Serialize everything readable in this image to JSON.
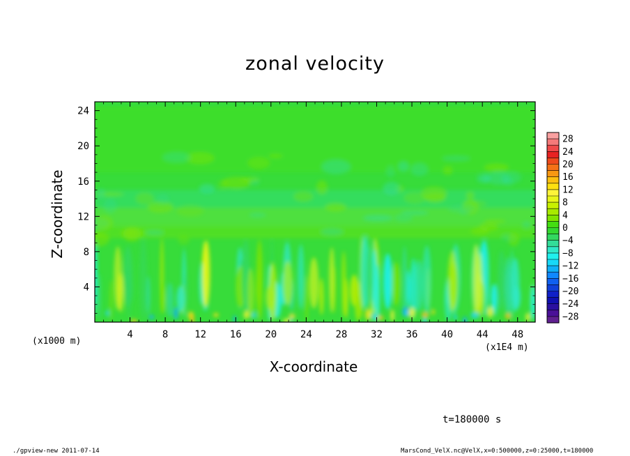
{
  "chart_data": {
    "type": "heatmap",
    "title": "zonal velocity",
    "xlabel": "X-coordinate",
    "ylabel": "Z-coordinate",
    "x_units_left": "(x1000 m)",
    "x_units_right": "(x1E4 m)",
    "xlim": [
      0,
      50
    ],
    "ylim": [
      0,
      25
    ],
    "xticks": [
      "4",
      "8",
      "12",
      "16",
      "20",
      "24",
      "28",
      "32",
      "36",
      "40",
      "44",
      "48"
    ],
    "yticks": [
      "4",
      "8",
      "12",
      "16",
      "20",
      "24"
    ],
    "colorbar": {
      "labels": [
        "28",
        "24",
        "20",
        "16",
        "12",
        "8",
        "4",
        "0",
        "−4",
        "−8",
        "−12",
        "−16",
        "−20",
        "−24",
        "−28"
      ],
      "levels": [
        30,
        28,
        26,
        24,
        22,
        20,
        18,
        16,
        14,
        12,
        10,
        8,
        6,
        4,
        2,
        0,
        -2,
        -4,
        -6,
        -8,
        -10,
        -12,
        -14,
        -16,
        -18,
        -20,
        -22,
        -24,
        -26,
        -28,
        -30
      ],
      "colors": [
        "#f9a0a0",
        "#f47a7a",
        "#ef4a4a",
        "#e82222",
        "#ee4a1c",
        "#f47216",
        "#f89812",
        "#fcc010",
        "#fde010",
        "#fef43a",
        "#e8f51a",
        "#c8f000",
        "#a8ea00",
        "#80e400",
        "#44de10",
        "#33d830",
        "#33d860",
        "#33dd99",
        "#30e8c8",
        "#20f0ee",
        "#18d8f8",
        "#10b0f8",
        "#1088ff",
        "#1060f0",
        "#1040d8",
        "#1020c8",
        "#1010b0",
        "#2a10a0",
        "#4a1098",
        "#602090"
      ]
    },
    "time_label": "t=180000 s",
    "footer_left": "./gpview-new  2011-07-14",
    "footer_right": "MarsCond_VelX.nc@VelX,x=0:500000,z=0:25000,t=180000"
  }
}
